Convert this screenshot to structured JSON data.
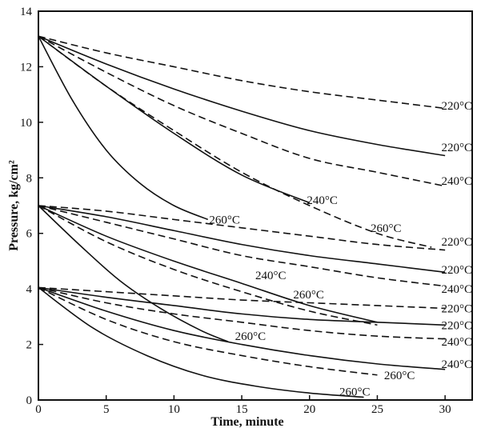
{
  "chart_data": {
    "type": "line",
    "title": "",
    "xlabel": "Time, minute",
    "ylabel": "Pressure, kg/cm²",
    "xlim": [
      0,
      32
    ],
    "ylim": [
      0,
      14
    ],
    "xticks": [
      0,
      5,
      10,
      15,
      20,
      25,
      30
    ],
    "yticks": [
      0,
      2,
      4,
      6,
      8,
      10,
      12,
      14
    ],
    "grid": false,
    "legend": "none",
    "series": [
      {
        "name": "220°C",
        "style": "dashed",
        "x": [
          0,
          5,
          10,
          15,
          20,
          25,
          30
        ],
        "y": [
          13.1,
          12.5,
          12.0,
          11.5,
          11.1,
          10.8,
          10.5
        ]
      },
      {
        "name": "220°C",
        "style": "solid",
        "x": [
          0,
          5,
          10,
          15,
          20,
          25,
          30
        ],
        "y": [
          13.1,
          12.1,
          11.2,
          10.4,
          9.7,
          9.2,
          8.8
        ]
      },
      {
        "name": "240°C",
        "style": "dashed",
        "x": [
          0,
          5,
          10,
          15,
          20,
          25,
          30
        ],
        "y": [
          13.1,
          11.8,
          10.6,
          9.6,
          8.7,
          8.2,
          7.7
        ]
      },
      {
        "name": "240°C",
        "style": "solid",
        "x": [
          0,
          5,
          10,
          15,
          20
        ],
        "y": [
          13.1,
          11.3,
          9.6,
          8.1,
          7.1
        ]
      },
      {
        "name": "260°C",
        "style": "dashed",
        "x": [
          0,
          5,
          10,
          15,
          20,
          25,
          29
        ],
        "y": [
          13.1,
          11.3,
          9.7,
          8.2,
          7.0,
          6.0,
          5.5
        ]
      },
      {
        "name": "260°C",
        "style": "solid",
        "x": [
          0,
          2.5,
          5,
          7.5,
          10,
          12.5
        ],
        "y": [
          13.1,
          10.8,
          9.0,
          7.8,
          7.0,
          6.5
        ]
      },
      {
        "name": "220°C",
        "style": "dashed",
        "x": [
          0,
          5,
          10,
          15,
          20,
          25,
          30
        ],
        "y": [
          7.0,
          6.8,
          6.5,
          6.2,
          5.9,
          5.6,
          5.4
        ]
      },
      {
        "name": "220°C",
        "style": "solid",
        "x": [
          0,
          5,
          10,
          15,
          20,
          25,
          30
        ],
        "y": [
          7.0,
          6.6,
          6.1,
          5.6,
          5.2,
          4.9,
          4.6
        ]
      },
      {
        "name": "240°C",
        "style": "dashed",
        "x": [
          0,
          5,
          10,
          15,
          20,
          25,
          30
        ],
        "y": [
          7.0,
          6.4,
          5.8,
          5.2,
          4.8,
          4.4,
          4.1
        ]
      },
      {
        "name": "240°C",
        "style": "solid",
        "x": [
          0,
          5,
          10,
          15,
          20,
          25
        ],
        "y": [
          7.0,
          5.9,
          5.0,
          4.2,
          3.4,
          2.8
        ]
      },
      {
        "name": "260°C",
        "style": "dashed",
        "x": [
          0,
          5,
          10,
          15,
          20,
          25
        ],
        "y": [
          7.0,
          5.7,
          4.7,
          3.9,
          3.2,
          2.7
        ]
      },
      {
        "name": "260°C",
        "style": "solid",
        "x": [
          0,
          3,
          6,
          9,
          12,
          14
        ],
        "y": [
          7.0,
          5.6,
          4.3,
          3.3,
          2.5,
          2.1
        ]
      },
      {
        "name": "220°C",
        "style": "dashed",
        "x": [
          0,
          5,
          10,
          15,
          20,
          25,
          30
        ],
        "y": [
          4.05,
          3.9,
          3.75,
          3.6,
          3.5,
          3.4,
          3.3
        ]
      },
      {
        "name": "220°C",
        "style": "solid",
        "x": [
          0,
          5,
          10,
          15,
          20,
          25,
          30
        ],
        "y": [
          4.05,
          3.7,
          3.4,
          3.1,
          2.9,
          2.8,
          2.7
        ]
      },
      {
        "name": "240°C",
        "style": "dashed",
        "x": [
          0,
          5,
          10,
          15,
          20,
          25,
          30
        ],
        "y": [
          4.05,
          3.5,
          3.1,
          2.8,
          2.5,
          2.3,
          2.2
        ]
      },
      {
        "name": "240°C",
        "style": "solid",
        "x": [
          0,
          5,
          10,
          15,
          20,
          25,
          30
        ],
        "y": [
          4.05,
          3.2,
          2.5,
          2.0,
          1.6,
          1.3,
          1.1
        ]
      },
      {
        "name": "260°C",
        "style": "dashed",
        "x": [
          0,
          5,
          10,
          15,
          20,
          25
        ],
        "y": [
          4.05,
          2.9,
          2.1,
          1.6,
          1.2,
          0.9
        ]
      },
      {
        "name": "260°C",
        "style": "solid",
        "x": [
          0,
          4,
          8,
          12,
          16,
          20,
          24
        ],
        "y": [
          4.05,
          2.6,
          1.6,
          0.9,
          0.5,
          0.25,
          0.1
        ]
      }
    ],
    "annotations": [
      {
        "text": "220°C",
        "x": 30.5,
        "y": 10.6
      },
      {
        "text": "220°C",
        "x": 30.5,
        "y": 9.1
      },
      {
        "text": "240°C",
        "x": 30.5,
        "y": 7.9
      },
      {
        "text": "240°C",
        "x": 19.8,
        "y": 7.2
      },
      {
        "text": "260°C",
        "x": 24.5,
        "y": 6.2
      },
      {
        "text": "260°C",
        "x": 12.6,
        "y": 6.5
      },
      {
        "text": "220°C",
        "x": 30.5,
        "y": 5.7
      },
      {
        "text": "220°C",
        "x": 30.5,
        "y": 4.7
      },
      {
        "text": "240°C",
        "x": 30.5,
        "y": 4.0
      },
      {
        "text": "240°C",
        "x": 16.0,
        "y": 4.5
      },
      {
        "text": "260°C",
        "x": 18.8,
        "y": 3.8
      },
      {
        "text": "220°C",
        "x": 30.5,
        "y": 3.3
      },
      {
        "text": "220°C",
        "x": 30.5,
        "y": 2.7
      },
      {
        "text": "240°C",
        "x": 30.5,
        "y": 2.1
      },
      {
        "text": "240°C",
        "x": 30.5,
        "y": 1.3
      },
      {
        "text": "260°C",
        "x": 25.5,
        "y": 0.9
      },
      {
        "text": "260°C",
        "x": 22.2,
        "y": 0.3
      },
      {
        "text": "260°C",
        "x": 14.5,
        "y": 2.3
      }
    ]
  }
}
